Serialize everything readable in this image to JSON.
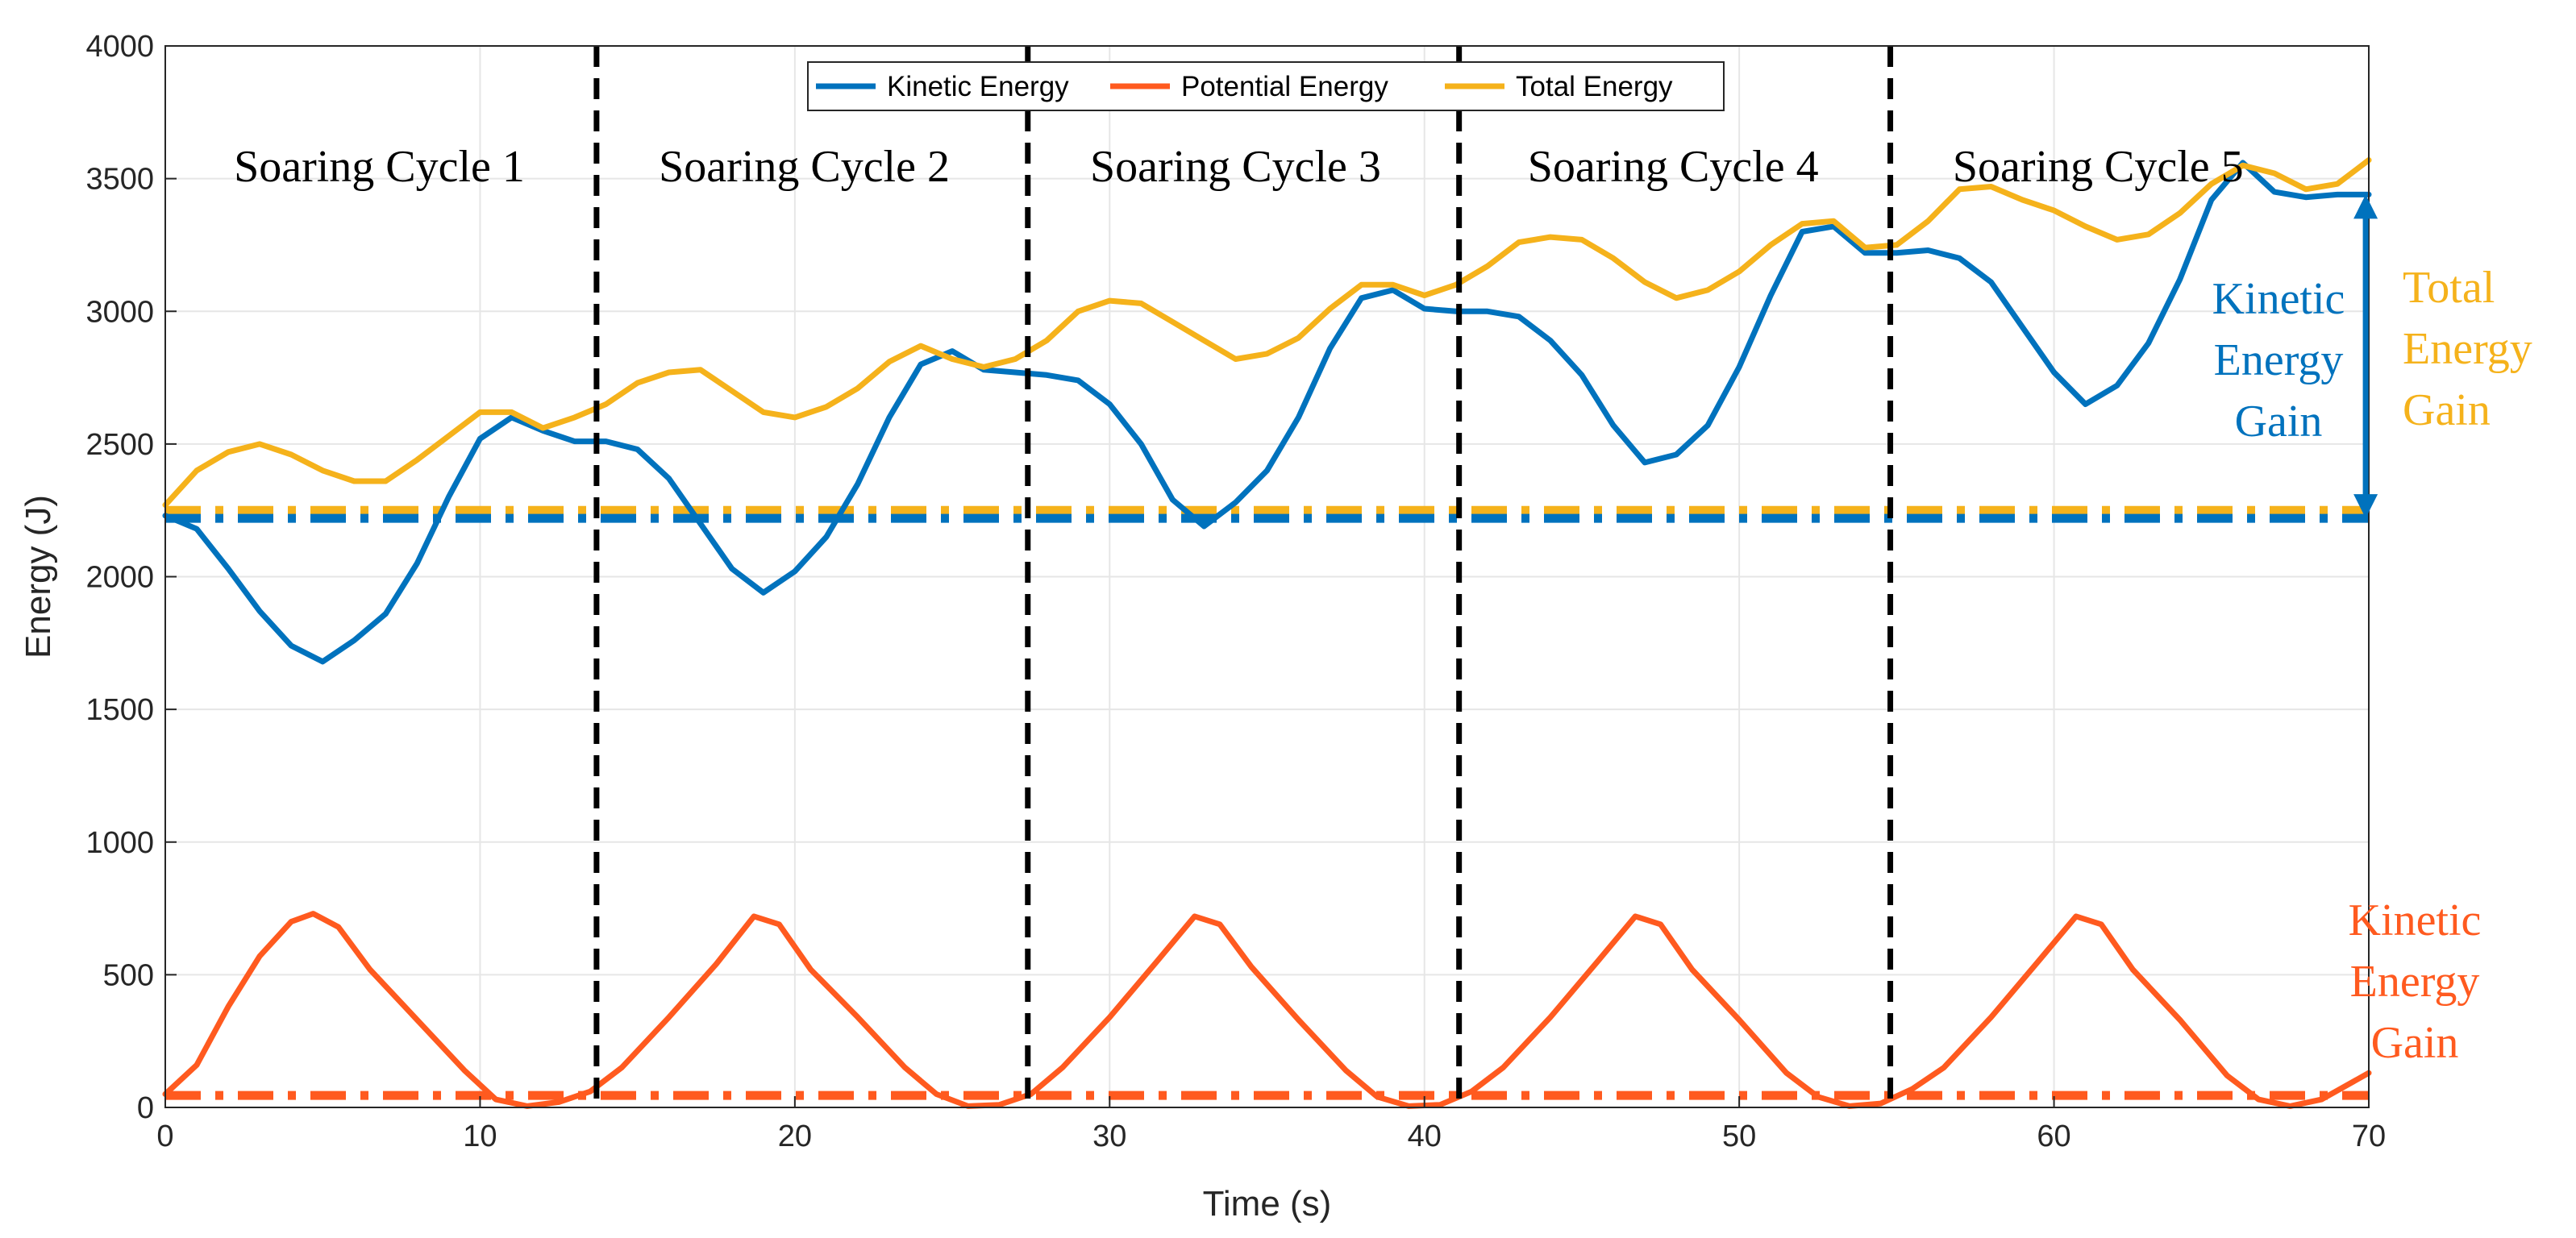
{
  "chart_data": {
    "type": "line",
    "title": "",
    "xlabel": "Time (s)",
    "ylabel": "Energy (J)",
    "xlim": [
      0,
      70
    ],
    "ylim": [
      0,
      4000
    ],
    "grid": true,
    "xticks": [
      0,
      10,
      20,
      30,
      40,
      50,
      60,
      70
    ],
    "yticks": [
      0,
      500,
      1000,
      1500,
      2000,
      2500,
      3000,
      3500,
      4000
    ],
    "legend": {
      "position": "top-center",
      "entries": [
        "Kinetic Energy",
        "Potential Energy",
        "Total Energy"
      ]
    },
    "colors": {
      "kinetic": "#0072BD",
      "potential": "#FF5A1F",
      "total": "#F5B21B",
      "divider": "#000000"
    },
    "series": [
      {
        "name": "Kinetic Energy",
        "color": "#0072BD",
        "x": [
          0,
          1,
          2,
          3,
          4,
          5,
          6,
          7,
          8,
          9,
          10,
          11,
          12,
          13,
          14,
          15,
          16,
          17,
          18,
          19,
          20,
          21,
          22,
          23,
          24,
          25,
          26,
          27,
          28,
          29,
          30,
          31,
          32,
          33,
          34,
          35,
          36,
          37,
          38,
          39,
          40,
          41,
          42,
          43,
          44,
          45,
          46,
          47,
          48,
          49,
          50,
          51,
          52,
          53,
          54,
          55,
          56,
          57,
          58,
          59,
          60,
          61,
          62,
          63,
          64,
          65,
          66,
          67,
          68,
          69,
          70
        ],
        "values": [
          2230,
          2180,
          2030,
          1870,
          1740,
          1680,
          1760,
          1860,
          2050,
          2300,
          2520,
          2600,
          2550,
          2510,
          2510,
          2480,
          2370,
          2200,
          2030,
          1940,
          2020,
          2150,
          2350,
          2600,
          2800,
          2850,
          2780,
          2770,
          2760,
          2740,
          2650,
          2500,
          2290,
          2190,
          2280,
          2400,
          2600,
          2860,
          3050,
          3080,
          3010,
          3000,
          3000,
          2980,
          2890,
          2760,
          2570,
          2430,
          2460,
          2570,
          2790,
          3060,
          3300,
          3320,
          3220,
          3220,
          3230,
          3200,
          3110,
          2940,
          2770,
          2650,
          2720,
          2880,
          3120,
          3420,
          3560,
          3450,
          3430,
          3440,
          3440
        ]
      },
      {
        "name": "Potential Energy",
        "color": "#FF5A1F",
        "x": [
          0,
          1,
          2,
          3,
          4,
          4.7,
          5.5,
          6.5,
          8,
          9.5,
          10.5,
          11.5,
          12.5,
          13.5,
          14.5,
          16,
          17.5,
          18.7,
          19.5,
          20.5,
          22,
          23.5,
          24.5,
          25.5,
          26.5,
          27.5,
          28.5,
          30,
          31.5,
          32.7,
          33.5,
          34.5,
          36,
          37.5,
          38.5,
          39.5,
          40.5,
          41.5,
          42.5,
          44,
          45.5,
          46.7,
          47.5,
          48.5,
          50,
          51.5,
          52.5,
          53.5,
          54.5,
          55.5,
          56.5,
          58,
          59.5,
          60.7,
          61.5,
          62.5,
          64,
          65.5,
          66.5,
          67.5,
          68.5,
          70
        ],
        "values": [
          50,
          160,
          380,
          570,
          700,
          730,
          680,
          520,
          330,
          140,
          30,
          5,
          20,
          60,
          150,
          340,
          540,
          720,
          690,
          520,
          340,
          150,
          50,
          5,
          10,
          50,
          150,
          340,
          550,
          720,
          690,
          530,
          330,
          140,
          40,
          5,
          10,
          60,
          150,
          340,
          550,
          720,
          690,
          520,
          330,
          130,
          40,
          5,
          15,
          70,
          150,
          340,
          550,
          720,
          690,
          520,
          330,
          120,
          30,
          5,
          30,
          130
        ]
      },
      {
        "name": "Total Energy",
        "color": "#F5B21B",
        "x": [
          0,
          1,
          2,
          3,
          4,
          5,
          6,
          7,
          8,
          9,
          10,
          11,
          12,
          13,
          14,
          15,
          16,
          17,
          18,
          19,
          20,
          21,
          22,
          23,
          24,
          25,
          26,
          27,
          28,
          29,
          30,
          31,
          32,
          33,
          34,
          35,
          36,
          37,
          38,
          39,
          40,
          41,
          42,
          43,
          44,
          45,
          46,
          47,
          48,
          49,
          50,
          51,
          52,
          53,
          54,
          55,
          56,
          57,
          58,
          59,
          60,
          61,
          62,
          63,
          64,
          65,
          66,
          67,
          68,
          69,
          70
        ],
        "values": [
          2270,
          2400,
          2470,
          2500,
          2460,
          2400,
          2360,
          2360,
          2440,
          2530,
          2620,
          2620,
          2560,
          2600,
          2650,
          2730,
          2770,
          2780,
          2700,
          2620,
          2600,
          2640,
          2710,
          2810,
          2870,
          2820,
          2790,
          2820,
          2890,
          3000,
          3040,
          3030,
          2960,
          2890,
          2820,
          2840,
          2900,
          3010,
          3100,
          3100,
          3060,
          3100,
          3170,
          3260,
          3280,
          3270,
          3200,
          3110,
          3050,
          3080,
          3150,
          3250,
          3330,
          3340,
          3240,
          3250,
          3340,
          3460,
          3470,
          3420,
          3380,
          3320,
          3270,
          3290,
          3370,
          3480,
          3550,
          3520,
          3460,
          3480,
          3570
        ]
      }
    ],
    "reference_lines": [
      {
        "name": "Total Energy baseline",
        "y": 2250,
        "style": "dash-dot",
        "color": "#F5B21B"
      },
      {
        "name": "Kinetic Energy baseline",
        "y": 2220,
        "style": "dash-dot",
        "color": "#0072BD"
      },
      {
        "name": "Potential Energy baseline",
        "y": 45,
        "style": "dash-dot",
        "color": "#FF5A1F"
      }
    ],
    "cycle_dividers_x": [
      13.7,
      27.4,
      41.1,
      54.8
    ],
    "cycles": [
      {
        "label": "Soaring Cycle 1",
        "x_center": 6.8
      },
      {
        "label": "Soaring Cycle 2",
        "x_center": 20.3
      },
      {
        "label": "Soaring Cycle 3",
        "x_center": 34.0
      },
      {
        "label": "Soaring Cycle 4",
        "x_center": 47.9
      },
      {
        "label": "Soaring Cycle 5",
        "x_center": 61.4
      }
    ],
    "gain_arrow": {
      "x": 69.9,
      "y_from": 2220,
      "y_to": 3440,
      "color": "#0072BD"
    },
    "annotations": {
      "kinetic_gain": [
        "Kinetic",
        "Energy",
        "Gain"
      ],
      "total_gain": [
        "Total",
        "Energy",
        "Gain"
      ],
      "potential_side": [
        "Kinetic",
        "Energy",
        "Gain"
      ]
    }
  }
}
